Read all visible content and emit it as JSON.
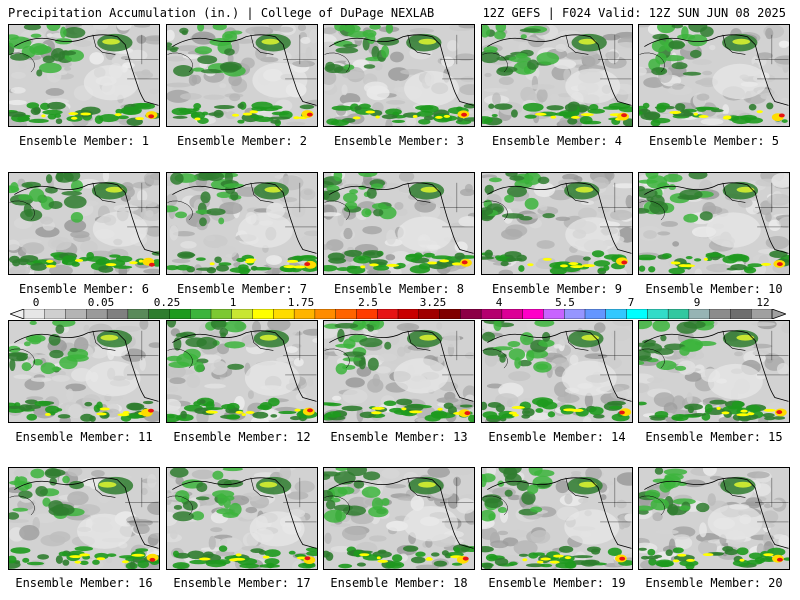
{
  "header": {
    "left_title": "Precipitation Accumulation (in.) | College of DuPage NEXLAB",
    "right_title": "12Z GEFS | F024 Valid: 12Z SUN JUN 08 2025"
  },
  "panels": [
    {
      "label": "Ensemble Member: 1"
    },
    {
      "label": "Ensemble Member: 2"
    },
    {
      "label": "Ensemble Member: 3"
    },
    {
      "label": "Ensemble Member: 4"
    },
    {
      "label": "Ensemble Member: 5"
    },
    {
      "label": "Ensemble Member: 6"
    },
    {
      "label": "Ensemble Member: 7"
    },
    {
      "label": "Ensemble Member: 8"
    },
    {
      "label": "Ensemble Member: 9"
    },
    {
      "label": "Ensemble Member: 10"
    },
    {
      "label": "Ensemble Member: 11"
    },
    {
      "label": "Ensemble Member: 12"
    },
    {
      "label": "Ensemble Member: 13"
    },
    {
      "label": "Ensemble Member: 14"
    },
    {
      "label": "Ensemble Member: 15"
    },
    {
      "label": "Ensemble Member: 16"
    },
    {
      "label": "Ensemble Member: 17"
    },
    {
      "label": "Ensemble Member: 18"
    },
    {
      "label": "Ensemble Member: 19"
    },
    {
      "label": "Ensemble Member: 20"
    }
  ],
  "colorbar": {
    "tick_labels": [
      "0",
      "0.05",
      "0.25",
      "1",
      "1.75",
      "2.5",
      "3.25",
      "4",
      "5.5",
      "7",
      "9",
      "12"
    ],
    "colors": [
      "#e6e6e6",
      "#cfcfcf",
      "#b4b4b4",
      "#9a9a9a",
      "#808080",
      "#5a8a5a",
      "#2f7d2f",
      "#1e9a1e",
      "#3cb43c",
      "#7cc832",
      "#c8e632",
      "#ffff00",
      "#ffdc00",
      "#ffb400",
      "#ff8c00",
      "#ff6400",
      "#ff3c00",
      "#e61414",
      "#c80000",
      "#a00000",
      "#800000",
      "#8c0046",
      "#b4006e",
      "#dc0096",
      "#ff00c8",
      "#c864ff",
      "#9696ff",
      "#6496ff",
      "#32c8ff",
      "#00ffff",
      "#32dcc8",
      "#32c8a0",
      "#96b4b4",
      "#8c8c8c",
      "#6e6e6e",
      "#a0a0a0"
    ]
  }
}
